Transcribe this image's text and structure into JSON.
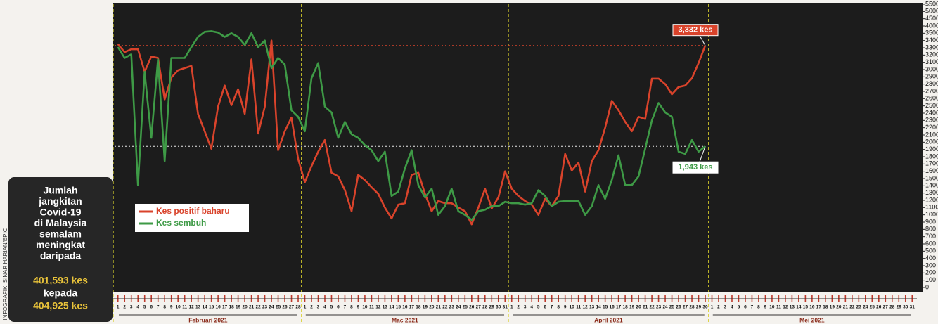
{
  "chart_data": {
    "type": "line",
    "credit": "INFOGRAFIK: SINAR HARIAN/EPIC",
    "panel": {
      "lines": [
        "Jumlah",
        "jangkitan",
        "Covid-19",
        "di Malaysia",
        "semalam",
        "meningkat",
        "daripada"
      ],
      "from": "401,593 kes",
      "connector": "kepada",
      "to": "404,925 kes"
    },
    "category_groups": [
      {
        "label": "Februari 2021",
        "categories": [
          "1",
          "2",
          "3",
          "4",
          "5",
          "6",
          "7",
          "8",
          "9",
          "10",
          "11",
          "12",
          "13",
          "14",
          "15",
          "16",
          "17",
          "18",
          "19",
          "20",
          "21",
          "22",
          "23",
          "24",
          "25",
          "26",
          "27",
          "28"
        ]
      },
      {
        "label": "Mac 2021",
        "categories": [
          "1",
          "2",
          "3",
          "4",
          "5",
          "6",
          "7",
          "8",
          "9",
          "10",
          "11",
          "12",
          "13",
          "14",
          "15",
          "16",
          "17",
          "18",
          "19",
          "20",
          "21",
          "22",
          "23",
          "24",
          "25",
          "26",
          "27",
          "28",
          "29",
          "30",
          "31"
        ]
      },
      {
        "label": "April 2021",
        "categories": [
          "1",
          "2",
          "3",
          "4",
          "5",
          "6",
          "7",
          "8",
          "9",
          "10",
          "11",
          "12",
          "13",
          "14",
          "15",
          "16",
          "17",
          "18",
          "19",
          "20",
          "21",
          "22",
          "23",
          "24",
          "25",
          "26",
          "27",
          "28",
          "29",
          "30"
        ]
      },
      {
        "label": "Mei 2021",
        "categories": [
          "1",
          "2",
          "3",
          "4",
          "5",
          "6",
          "7",
          "8",
          "9",
          "10",
          "11",
          "12",
          "13",
          "14",
          "15",
          "16",
          "17",
          "18",
          "19",
          "20",
          "21",
          "22",
          "23",
          "24",
          "25",
          "26",
          "27",
          "28",
          "29",
          "30",
          "31"
        ]
      }
    ],
    "series": [
      {
        "name": "Kes positif baharu",
        "color": "#d9432b",
        "values": [
          3350,
          3240,
          3280,
          3280,
          2970,
          3180,
          3160,
          2590,
          2890,
          2990,
          3020,
          3050,
          2390,
          2150,
          1910,
          2490,
          2780,
          2510,
          2730,
          2390,
          3140,
          2120,
          2490,
          3400,
          1890,
          2150,
          2340,
          1770,
          1450,
          1670,
          1870,
          2030,
          1580,
          1530,
          1340,
          1050,
          1550,
          1480,
          1380,
          1290,
          1100,
          950,
          1140,
          1160,
          1550,
          1580,
          1290,
          1050,
          1190,
          1160,
          1160,
          1100,
          1050,
          870,
          1100,
          1360,
          1090,
          1240,
          1600,
          1360,
          1260,
          1190,
          1140,
          1000,
          1220,
          1120,
          1260,
          1840,
          1610,
          1720,
          1320,
          1740,
          1890,
          2200,
          2570,
          2440,
          2280,
          2150,
          2350,
          2320,
          2875,
          2875,
          2800,
          2660,
          2760,
          2780,
          2880,
          3090,
          3332,
          null,
          null,
          null,
          null,
          null,
          null,
          null,
          null,
          null,
          null,
          null,
          null,
          null,
          null,
          null,
          null,
          null,
          null,
          null,
          null,
          null,
          null,
          null,
          null,
          null,
          null,
          null,
          null,
          null,
          null,
          null
        ]
      },
      {
        "name": "Kes sembuh",
        "color": "#3e9a46",
        "values": [
          3310,
          3160,
          3210,
          1410,
          2970,
          2060,
          3140,
          1740,
          3160,
          3160,
          3160,
          3310,
          3450,
          3600,
          3640,
          3550,
          3450,
          3500,
          3450,
          3340,
          3500,
          3310,
          3400,
          3020,
          3160,
          3070,
          2440,
          2350,
          2150,
          2880,
          3090,
          2490,
          2410,
          2060,
          2280,
          2110,
          2060,
          1960,
          1890,
          1740,
          1870,
          1260,
          1320,
          1640,
          1890,
          1410,
          1240,
          1360,
          1000,
          1120,
          1360,
          1050,
          1000,
          930,
          1050,
          1070,
          1120,
          1120,
          1180,
          1160,
          1160,
          1140,
          1160,
          1340,
          1260,
          1120,
          1180,
          1190,
          1190,
          1190,
          1000,
          1120,
          1410,
          1220,
          1480,
          1820,
          1410,
          1410,
          1530,
          1910,
          2300,
          2540,
          2410,
          2350,
          1870,
          1840,
          2030,
          1870,
          1943,
          null,
          null,
          null,
          null,
          null,
          null,
          null,
          null,
          null,
          null,
          null,
          null,
          null,
          null,
          null,
          null,
          null,
          null,
          null,
          null,
          null,
          null,
          null,
          null,
          null,
          null,
          null,
          null,
          null,
          null,
          null
        ]
      }
    ],
    "annotations": [
      {
        "text": "3,332 kes",
        "value": 3332,
        "color": "#d9432b"
      },
      {
        "text": "1,943 kes",
        "value": 1943,
        "color": "#3e9a46"
      }
    ],
    "ylim": [
      0,
      5500
    ],
    "yticks": [
      0,
      100,
      200,
      300,
      400,
      500,
      600,
      700,
      800,
      900,
      1000,
      1100,
      1200,
      1300,
      1400,
      1500,
      1600,
      1700,
      1800,
      1900,
      2000,
      2100,
      2200,
      2300,
      2400,
      2500,
      2600,
      2700,
      2800,
      2900,
      3000,
      3100,
      3200,
      3300,
      3400,
      3500,
      4000,
      4500,
      5000,
      5500
    ],
    "legend": "bottom-left"
  }
}
